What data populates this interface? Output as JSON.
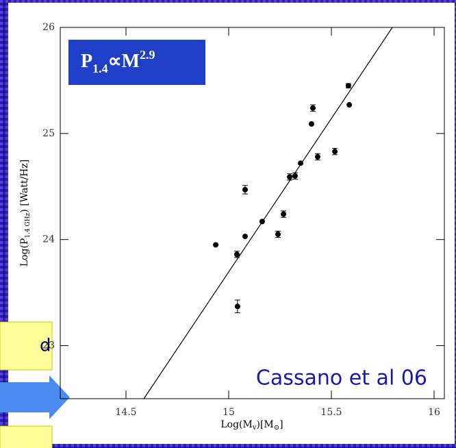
{
  "chart_data": {
    "type": "scatter",
    "annotation_inset": {
      "base": "P",
      "sub": "1.4",
      "op": "∝M",
      "sup": "2.9"
    },
    "annotation_credit": "Cassano et al 06",
    "side_fragment": "d",
    "x_label": {
      "main": "Log(M",
      "sub": "v",
      "rest": ")[M",
      "sub2": "⊙",
      "end": "]"
    },
    "y_label": {
      "main": "Log(P",
      "sub": "1.4 GHz",
      "rest": ") [Watt/Hz]"
    },
    "xlim": [
      14.18,
      16.05
    ],
    "ylim": [
      22.5,
      26
    ],
    "xticks": [
      14.5,
      15,
      15.5,
      16
    ],
    "yticks": [
      23,
      24,
      25,
      26
    ],
    "series": [
      {
        "color": "#000000",
        "x": [
          14.937,
          15.04,
          15.043,
          15.08,
          15.08,
          15.163,
          15.24,
          15.267,
          15.297,
          15.323,
          15.35,
          15.403,
          15.41,
          15.433,
          15.517,
          15.583,
          15.587
        ],
        "values": [
          23.95,
          23.86,
          23.37,
          24.03,
          24.47,
          24.17,
          24.05,
          24.24,
          24.59,
          24.6,
          24.72,
          25.09,
          25.24,
          24.78,
          24.83,
          25.45,
          25.27
        ],
        "errors": [
          null,
          0.03,
          0.06,
          null,
          0.04,
          null,
          0.03,
          0.03,
          0.03,
          0.03,
          null,
          null,
          0.03,
          0.03,
          0.03,
          0.02,
          null
        ]
      }
    ],
    "fit_line": {
      "x": [
        14.587,
        15.797
      ],
      "values": [
        22.5,
        26
      ]
    }
  }
}
